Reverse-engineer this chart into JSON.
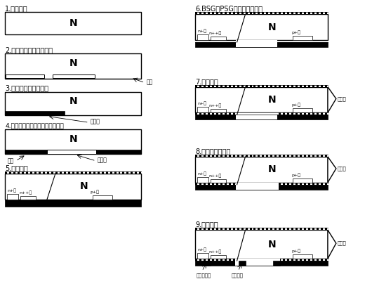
{
  "bg_color": "#ffffff",
  "steps_left": [
    {
      "num": "1",
      "title": "表面制绒"
    },
    {
      "num": "2",
      "title": "背面基区丝网印刷硼浆"
    },
    {
      "num": "3",
      "title": "丝网印刷扩散阻挡层"
    },
    {
      "num": "4",
      "title": "背面发射极电极区丝网印刷磷浆"
    },
    {
      "num": "5",
      "title": "高温扩散"
    }
  ],
  "steps_right": [
    {
      "num": "6",
      "title": "BSG、PSG以及阻挡层去除"
    },
    {
      "num": "7",
      "title": "双面钝化"
    },
    {
      "num": "8",
      "title": "背面薄膜开窗口"
    },
    {
      "num": "9",
      "title": "制备电极"
    }
  ],
  "label_n": "N",
  "label_nplus": "n+层",
  "label_nplusplus": "n++层",
  "label_pplus": "p+层",
  "label_passivation": "钝化层",
  "label_boron": "硼浆",
  "label_barrier": "阻挡层",
  "label_phosphor": "磷浆",
  "label_emitter_electrode": "发射区电极",
  "label_base_electrode": "基区电极"
}
